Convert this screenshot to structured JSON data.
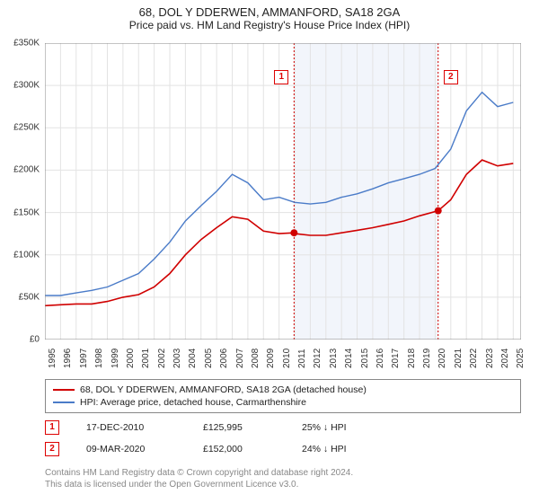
{
  "title": "68, DOL Y DDERWEN, AMMANFORD, SA18 2GA",
  "subtitle": "Price paid vs. HM Land Registry's House Price Index (HPI)",
  "chart": {
    "type": "line",
    "background_color": "#ffffff",
    "grid_color": "#e3e3e3",
    "border_color": "#888888",
    "shaded_region": {
      "x_start": 2010.96,
      "x_end": 2020.19,
      "fill": "#f2f5fb"
    },
    "xlim": [
      1995,
      2025.5
    ],
    "ylim": [
      0,
      350000
    ],
    "ytick_step": 50000,
    "ytick_labels": [
      "£0",
      "£50K",
      "£100K",
      "£150K",
      "£200K",
      "£250K",
      "£300K",
      "£350K"
    ],
    "xticks": [
      1995,
      1996,
      1997,
      1998,
      1999,
      2000,
      2001,
      2002,
      2003,
      2004,
      2005,
      2006,
      2007,
      2008,
      2009,
      2010,
      2011,
      2012,
      2013,
      2014,
      2015,
      2016,
      2017,
      2018,
      2019,
      2020,
      2021,
      2022,
      2023,
      2024,
      2025
    ],
    "series": [
      {
        "name": "property",
        "color": "#d00000",
        "line_width": 1.6,
        "points": [
          [
            1995,
            40000
          ],
          [
            1996,
            41000
          ],
          [
            1997,
            42000
          ],
          [
            1998,
            42000
          ],
          [
            1999,
            45000
          ],
          [
            2000,
            50000
          ],
          [
            2001,
            53000
          ],
          [
            2002,
            62000
          ],
          [
            2003,
            78000
          ],
          [
            2004,
            100000
          ],
          [
            2005,
            118000
          ],
          [
            2006,
            132000
          ],
          [
            2007,
            145000
          ],
          [
            2008,
            142000
          ],
          [
            2009,
            128000
          ],
          [
            2010,
            125000
          ],
          [
            2010.96,
            125995
          ],
          [
            2011,
            125000
          ],
          [
            2012,
            123000
          ],
          [
            2013,
            123000
          ],
          [
            2014,
            126000
          ],
          [
            2015,
            129000
          ],
          [
            2016,
            132000
          ],
          [
            2017,
            136000
          ],
          [
            2018,
            140000
          ],
          [
            2019,
            146000
          ],
          [
            2020.19,
            152000
          ],
          [
            2021,
            165000
          ],
          [
            2022,
            195000
          ],
          [
            2023,
            212000
          ],
          [
            2024,
            205000
          ],
          [
            2025,
            208000
          ]
        ]
      },
      {
        "name": "hpi",
        "color": "#4a7bc8",
        "line_width": 1.4,
        "points": [
          [
            1995,
            52000
          ],
          [
            1996,
            52000
          ],
          [
            1997,
            55000
          ],
          [
            1998,
            58000
          ],
          [
            1999,
            62000
          ],
          [
            2000,
            70000
          ],
          [
            2001,
            78000
          ],
          [
            2002,
            95000
          ],
          [
            2003,
            115000
          ],
          [
            2004,
            140000
          ],
          [
            2005,
            158000
          ],
          [
            2006,
            175000
          ],
          [
            2007,
            195000
          ],
          [
            2008,
            185000
          ],
          [
            2009,
            165000
          ],
          [
            2010,
            168000
          ],
          [
            2011,
            162000
          ],
          [
            2012,
            160000
          ],
          [
            2013,
            162000
          ],
          [
            2014,
            168000
          ],
          [
            2015,
            172000
          ],
          [
            2016,
            178000
          ],
          [
            2017,
            185000
          ],
          [
            2018,
            190000
          ],
          [
            2019,
            195000
          ],
          [
            2020,
            202000
          ],
          [
            2021,
            225000
          ],
          [
            2022,
            270000
          ],
          [
            2023,
            292000
          ],
          [
            2024,
            275000
          ],
          [
            2025,
            280000
          ]
        ]
      }
    ],
    "markers": [
      {
        "id": "1",
        "x": 2010.96,
        "y": 125995,
        "dot_color": "#d00000"
      },
      {
        "id": "2",
        "x": 2020.19,
        "y": 152000,
        "dot_color": "#d00000"
      }
    ],
    "marker_line_color": "#d00000",
    "marker_line_dash": "2,2",
    "label_fontsize": 10,
    "title_fontsize": 13
  },
  "legend": {
    "items": [
      {
        "color": "#d00000",
        "label": "68, DOL Y DDERWEN, AMMANFORD, SA18 2GA (detached house)"
      },
      {
        "color": "#4a7bc8",
        "label": "HPI: Average price, detached house, Carmarthenshire"
      }
    ]
  },
  "events": [
    {
      "marker": "1",
      "date": "17-DEC-2010",
      "price": "£125,995",
      "delta": "25% ↓ HPI"
    },
    {
      "marker": "2",
      "date": "09-MAR-2020",
      "price": "£152,000",
      "delta": "24% ↓ HPI"
    }
  ],
  "footer": {
    "line1": "Contains HM Land Registry data © Crown copyright and database right 2024.",
    "line2": "This data is licensed under the Open Government Licence v3.0."
  }
}
